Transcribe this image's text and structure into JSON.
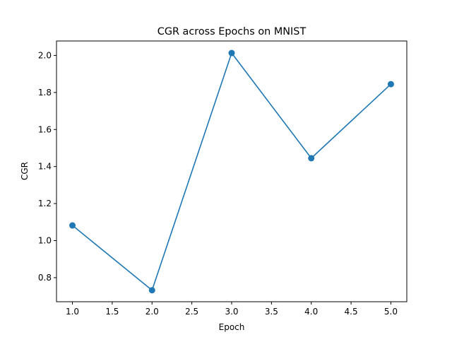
{
  "chart_data": {
    "type": "line",
    "title": "CGR across Epochs on MNIST",
    "xlabel": "Epoch",
    "ylabel": "CGR",
    "x": [
      1.0,
      2.0,
      3.0,
      4.0,
      5.0
    ],
    "series": [
      {
        "values": [
          1.082,
          0.732,
          2.013,
          1.445,
          1.845
        ],
        "color": "#1f77b4",
        "marker": "circle"
      }
    ],
    "xlim": [
      0.8,
      5.2
    ],
    "ylim": [
      0.67,
      2.078
    ],
    "x_ticks": [
      1.0,
      1.5,
      2.0,
      2.5,
      3.0,
      3.5,
      4.0,
      4.5,
      5.0
    ],
    "x_tick_labels": [
      "1.0",
      "1.5",
      "2.0",
      "2.5",
      "3.0",
      "3.5",
      "4.0",
      "4.5",
      "5.0"
    ],
    "y_ticks": [
      0.8,
      1.0,
      1.2,
      1.4,
      1.6,
      1.8,
      2.0
    ],
    "y_tick_labels": [
      "0.8",
      "1.0",
      "1.2",
      "1.4",
      "1.6",
      "1.8",
      "2.0"
    ],
    "grid": false,
    "legend": false
  }
}
